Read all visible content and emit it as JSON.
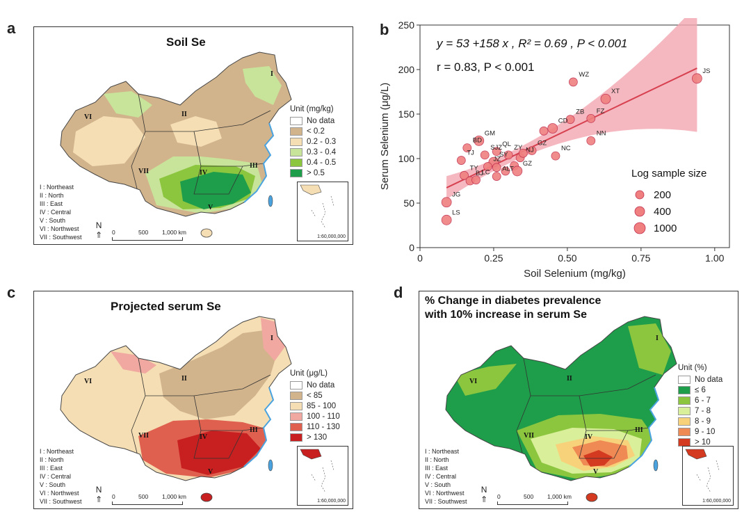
{
  "panels": {
    "a": {
      "letter": "a",
      "title": "Soil Se",
      "legend_unit": "Unit (mg/kg)",
      "legend": [
        {
          "label": "No data",
          "color": "#ffffff"
        },
        {
          "label": "< 0.2",
          "color": "#d2b48c"
        },
        {
          "label": "0.2 - 0.3",
          "color": "#f5deb3"
        },
        {
          "label": "0.3 - 0.4",
          "color": "#c8e39a"
        },
        {
          "label": "0.4 - 0.5",
          "color": "#8cc63f"
        },
        {
          "label": "> 0.5",
          "color": "#1e9e4a"
        }
      ]
    },
    "c": {
      "letter": "c",
      "title": "Projected serum Se",
      "legend_unit": "Unit (μg/L)",
      "legend": [
        {
          "label": "No data",
          "color": "#ffffff"
        },
        {
          "label": "< 85",
          "color": "#d2b48c"
        },
        {
          "label": "85 - 100",
          "color": "#f5deb3"
        },
        {
          "label": "100 - 110",
          "color": "#f0a8a0"
        },
        {
          "label": "110 - 130",
          "color": "#e06050"
        },
        {
          "label": "> 130",
          "color": "#c82020"
        }
      ]
    },
    "d": {
      "letter": "d",
      "title_line1": "% Change in diabetes prevalence",
      "title_line2": "with 10% increase in serum Se",
      "legend_unit": "Unit (%)",
      "legend": [
        {
          "label": "No data",
          "color": "#ffffff"
        },
        {
          "label": "≤ 6",
          "color": "#1e9e4a"
        },
        {
          "label": "6 - 7",
          "color": "#8cc63f"
        },
        {
          "label": "7 - 8",
          "color": "#d9ef9a"
        },
        {
          "label": "8 - 9",
          "color": "#f7d27a"
        },
        {
          "label": "9 - 10",
          "color": "#ef8a55"
        },
        {
          "label": "> 10",
          "color": "#d43a20"
        }
      ]
    }
  },
  "map_common": {
    "regions": [
      "I : Northeast",
      "II : North",
      "III : East",
      "IV : Central",
      "V : South",
      "VI : Northwest",
      "VII : Southwest"
    ],
    "region_numerals": [
      "I",
      "II",
      "III",
      "IV",
      "V",
      "VI",
      "VII"
    ],
    "north": "N",
    "scale_labels": [
      "0",
      "500",
      "1,000 km"
    ],
    "inset_scale": "1:60,000,000"
  },
  "chart_data": {
    "type": "scatter",
    "letter": "b",
    "equation": "y = 53 +158 x , R² = 0.69 , P < 0.001",
    "correlation": "r = 0.83, P < 0.001",
    "xlabel": "Soil Selenium (mg/kg)",
    "ylabel": "Serum Selenium (μg/L)",
    "xlim": [
      0,
      1.05
    ],
    "ylim": [
      0,
      250
    ],
    "xticks": [
      0,
      0.25,
      0.5,
      0.75,
      1.0
    ],
    "xtick_labels": [
      "0",
      "0.25",
      "0.50",
      "0.75",
      "1.00"
    ],
    "yticks": [
      0,
      50,
      100,
      150,
      200,
      250
    ],
    "ytick_labels": [
      "0",
      "50",
      "100",
      "150",
      "200",
      "250"
    ],
    "fit": {
      "intercept": 53,
      "slope": 158,
      "x_range": [
        0.09,
        0.94
      ]
    },
    "legend_title": "Log sample size",
    "size_legend": [
      {
        "label": "200",
        "r": 6
      },
      {
        "label": "400",
        "r": 7
      },
      {
        "label": "1000",
        "r": 8
      }
    ],
    "point_color": "#f08080",
    "line_color": "#d6404f",
    "points": [
      {
        "label": "JS",
        "x": 0.94,
        "y": 190,
        "s": 7
      },
      {
        "label": "WZ",
        "x": 0.52,
        "y": 186,
        "s": 6
      },
      {
        "label": "XT",
        "x": 0.63,
        "y": 167,
        "s": 7
      },
      {
        "label": "FZ",
        "x": 0.58,
        "y": 145,
        "s": 6
      },
      {
        "label": "ZB",
        "x": 0.51,
        "y": 144,
        "s": 6
      },
      {
        "label": "CD",
        "x": 0.45,
        "y": 134,
        "s": 7
      },
      {
        "label": "",
        "x": 0.42,
        "y": 131,
        "s": 6
      },
      {
        "label": "NN",
        "x": 0.58,
        "y": 120,
        "s": 6
      },
      {
        "label": "GZ",
        "x": 0.38,
        "y": 109,
        "s": 6
      },
      {
        "label": "NC",
        "x": 0.46,
        "y": 103,
        "s": 6
      },
      {
        "label": "ZY",
        "x": 0.3,
        "y": 104,
        "s": 6
      },
      {
        "label": "NJ",
        "x": 0.34,
        "y": 101,
        "s": 6
      },
      {
        "label": "",
        "x": 0.35,
        "y": 106,
        "s": 6
      },
      {
        "label": "QL",
        "x": 0.26,
        "y": 108,
        "s": 6
      },
      {
        "label": "GM",
        "x": 0.2,
        "y": 120,
        "s": 7
      },
      {
        "label": "BD",
        "x": 0.16,
        "y": 112,
        "s": 6
      },
      {
        "label": "SJZ",
        "x": 0.22,
        "y": 104,
        "s": 6
      },
      {
        "label": "SY",
        "x": 0.25,
        "y": 96,
        "s": 7
      },
      {
        "label": "TJ",
        "x": 0.14,
        "y": 98,
        "s": 6
      },
      {
        "label": "JZ",
        "x": 0.23,
        "y": 91,
        "s": 6
      },
      {
        "label": "",
        "x": 0.26,
        "y": 90,
        "s": 6
      },
      {
        "label": "",
        "x": 0.29,
        "y": 86,
        "s": 6
      },
      {
        "label": "",
        "x": 0.32,
        "y": 92,
        "s": 6
      },
      {
        "label": "GZ",
        "x": 0.33,
        "y": 86,
        "s": 7
      },
      {
        "label": "TY",
        "x": 0.15,
        "y": 81,
        "s": 6
      },
      {
        "label": "ALT",
        "x": 0.26,
        "y": 80,
        "s": 6
      },
      {
        "label": "BJ",
        "x": 0.17,
        "y": 75,
        "s": 6
      },
      {
        "label": "LC",
        "x": 0.19,
        "y": 76,
        "s": 6
      },
      {
        "label": "JG",
        "x": 0.09,
        "y": 51,
        "s": 7
      },
      {
        "label": "LS",
        "x": 0.09,
        "y": 31,
        "s": 7
      }
    ]
  }
}
